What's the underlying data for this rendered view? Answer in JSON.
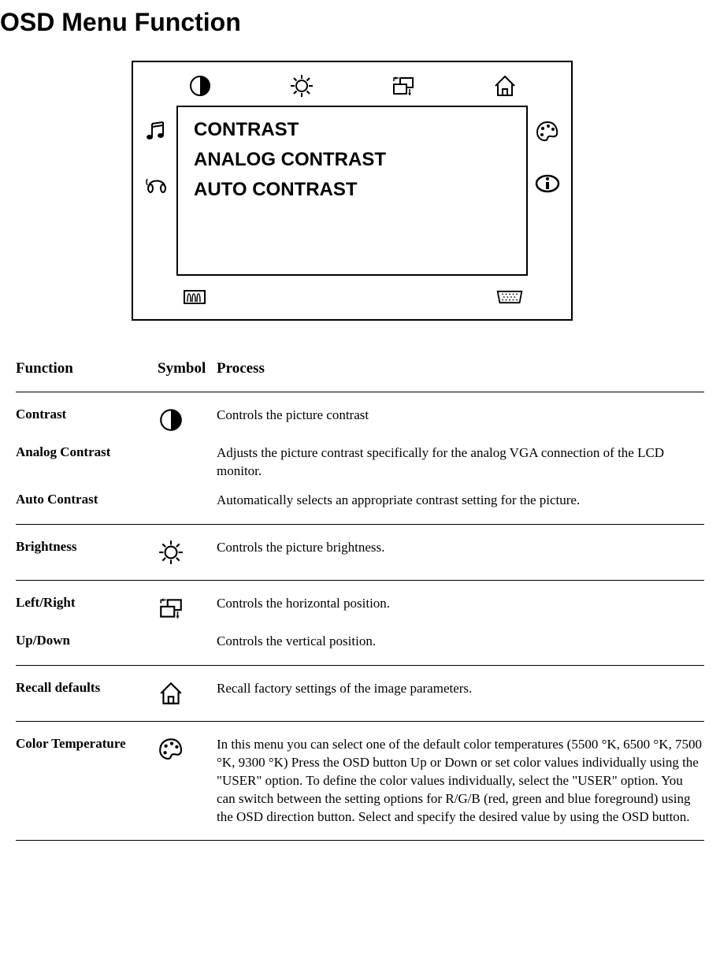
{
  "pageTitle": "OSD Menu Function",
  "osd": {
    "innerLines": [
      "CONTRAST",
      "ANALOG CONTRAST",
      "AUTO CONTRAST"
    ]
  },
  "headers": {
    "function": "Function",
    "symbol": "Symbol",
    "process": "Process"
  },
  "sections": [
    {
      "rows": [
        {
          "name": "Contrast",
          "icon": "contrast",
          "process": "Controls the picture contrast"
        },
        {
          "name": "Analog Contrast",
          "icon": "",
          "process": "Adjusts the picture contrast specifically for the analog VGA connection of the LCD monitor."
        },
        {
          "name": "Auto Contrast",
          "icon": "",
          "process": "Automatically selects an appropriate contrast setting for the picture."
        }
      ]
    },
    {
      "rows": [
        {
          "name": "Brightness",
          "icon": "brightness",
          "process": "Controls the picture brightness."
        }
      ]
    },
    {
      "rows": [
        {
          "name": "Left/Right",
          "icon": "position",
          "process": "Controls the horizontal position."
        },
        {
          "name": "Up/Down",
          "icon": "",
          "process": "Controls the vertical position."
        }
      ]
    },
    {
      "rows": [
        {
          "name": "Recall defaults",
          "icon": "home",
          "process": "Recall factory settings of the image parameters."
        }
      ]
    },
    {
      "rows": [
        {
          "name": "Color Temperature",
          "icon": "palette",
          "process": "In this menu you can select one of the default color temperatures (5500 °K, 6500 °K,  7500 °K,  9300 °K)  Press the OSD button Up or Down or set color values individually using the \"USER\" option. To define the color values individually, select the \"USER\" option. You can switch between the setting options for R/G/B (red, green and blue foreground) using the OSD direction button. Select and specify the desired value by using the OSD button."
        }
      ]
    }
  ]
}
